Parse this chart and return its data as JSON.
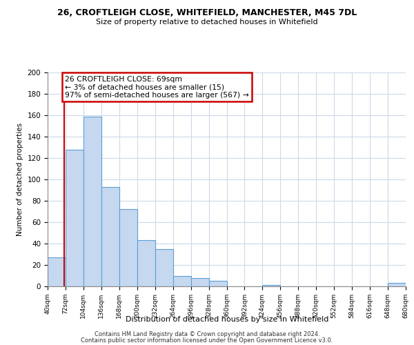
{
  "title": "26, CROFTLEIGH CLOSE, WHITEFIELD, MANCHESTER, M45 7DL",
  "subtitle": "Size of property relative to detached houses in Whitefield",
  "xlabel": "Distribution of detached houses by size in Whitefield",
  "ylabel": "Number of detached properties",
  "bar_edges": [
    40,
    72,
    104,
    136,
    168,
    200,
    232,
    264,
    296,
    328,
    360,
    392,
    424,
    456,
    488,
    520,
    552,
    584,
    616,
    648,
    680
  ],
  "bar_heights": [
    27,
    128,
    159,
    93,
    72,
    43,
    35,
    10,
    8,
    5,
    0,
    0,
    1,
    0,
    0,
    0,
    0,
    0,
    0,
    3
  ],
  "bar_color": "#c5d8f0",
  "bar_edge_color": "#5a9fd4",
  "property_size": 69,
  "annotation_title": "26 CROFTLEIGH CLOSE: 69sqm",
  "annotation_line1": "← 3% of detached houses are smaller (15)",
  "annotation_line2": "97% of semi-detached houses are larger (567) →",
  "annotation_box_color": "#ffffff",
  "annotation_box_edge_color": "#cc0000",
  "property_line_color": "#cc0000",
  "ylim": [
    0,
    200
  ],
  "yticks": [
    0,
    20,
    40,
    60,
    80,
    100,
    120,
    140,
    160,
    180,
    200
  ],
  "footnote1": "Contains HM Land Registry data © Crown copyright and database right 2024.",
  "footnote2": "Contains public sector information licensed under the Open Government Licence v3.0.",
  "background_color": "#ffffff",
  "grid_color": "#ccd9e8"
}
